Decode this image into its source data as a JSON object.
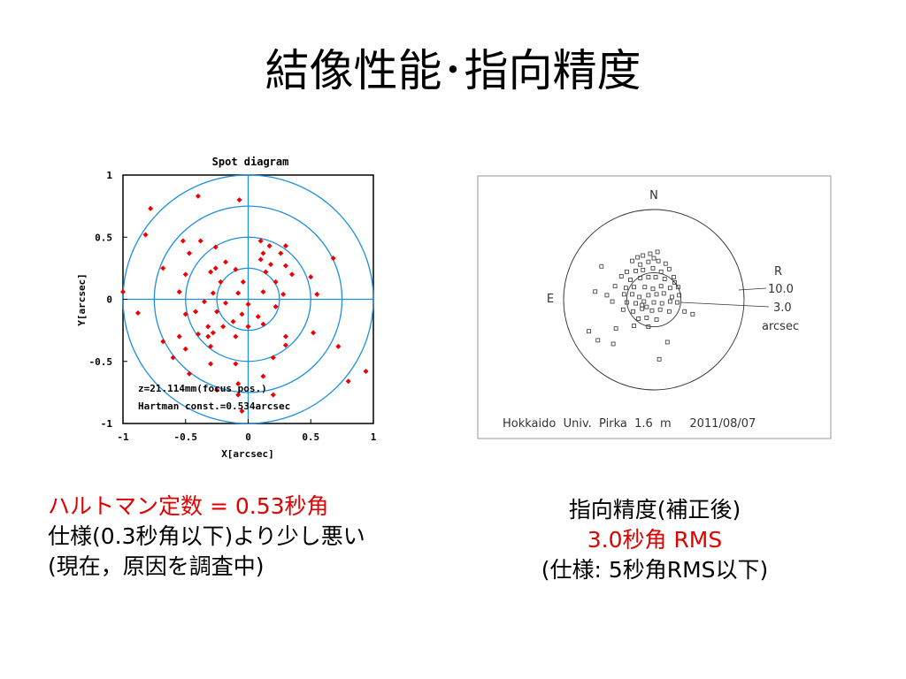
{
  "title": "結像性能･指向精度",
  "colors": {
    "spot": "#ee0000",
    "rings": "#1e8fe0",
    "highlight": "#e00000"
  },
  "chart_data": [
    {
      "type": "scatter",
      "title": "Spot diagram",
      "xlabel": "X[arcsec]",
      "ylabel": "Y[arcsec]",
      "xlim": [
        -1,
        1
      ],
      "ylim": [
        -1,
        1
      ],
      "xticks": [
        "-1",
        "-0.5",
        "0",
        "0.5",
        "1"
      ],
      "yticks": [
        "1",
        "0.5",
        "0",
        "-0.5",
        "-1"
      ],
      "ring_radii": [
        0.25,
        0.5,
        0.75,
        1.0
      ],
      "annotations": [
        "z=21.114mm(focus pos.)",
        "Hartman const.=0.534arcsec"
      ],
      "points": [
        [
          -0.4,
          0.83
        ],
        [
          -0.07,
          0.8
        ],
        [
          -0.78,
          0.73
        ],
        [
          -0.82,
          0.52
        ],
        [
          -0.52,
          0.47
        ],
        [
          -0.38,
          0.47
        ],
        [
          -0.26,
          0.42
        ],
        [
          -0.47,
          0.37
        ],
        [
          0.1,
          0.47
        ],
        [
          0.17,
          0.43
        ],
        [
          0.3,
          0.43
        ],
        [
          0.12,
          0.37
        ],
        [
          0.26,
          0.37
        ],
        [
          0.68,
          0.33
        ],
        [
          -0.18,
          0.3
        ],
        [
          -0.26,
          0.25
        ],
        [
          0.1,
          0.32
        ],
        [
          0.18,
          0.28
        ],
        [
          0.3,
          0.27
        ],
        [
          -0.68,
          0.25
        ],
        [
          -0.5,
          0.2
        ],
        [
          -0.3,
          0.22
        ],
        [
          -0.1,
          0.24
        ],
        [
          0.14,
          0.22
        ],
        [
          0.35,
          0.2
        ],
        [
          0.5,
          0.18
        ],
        [
          -0.22,
          0.14
        ],
        [
          -0.04,
          0.14
        ],
        [
          0.22,
          0.14
        ],
        [
          -1.0,
          0.06
        ],
        [
          -0.55,
          0.06
        ],
        [
          -0.28,
          0.05
        ],
        [
          -0.08,
          0.05
        ],
        [
          0.12,
          0.06
        ],
        [
          0.28,
          0.04
        ],
        [
          0.55,
          0.04
        ],
        [
          -0.35,
          -0.02
        ],
        [
          -0.18,
          -0.03
        ],
        [
          0.0,
          -0.04
        ],
        [
          0.22,
          -0.06
        ],
        [
          -0.88,
          -0.11
        ],
        [
          -0.5,
          -0.12
        ],
        [
          -0.42,
          -0.1
        ],
        [
          -0.25,
          -0.1
        ],
        [
          -0.05,
          -0.12
        ],
        [
          0.08,
          -0.14
        ],
        [
          -0.12,
          -0.18
        ],
        [
          0.12,
          -0.2
        ],
        [
          -0.32,
          -0.22
        ],
        [
          -0.2,
          -0.22
        ],
        [
          0.0,
          -0.22
        ],
        [
          -0.4,
          -0.28
        ],
        [
          -0.28,
          -0.27
        ],
        [
          -0.55,
          -0.3
        ],
        [
          -0.32,
          -0.3
        ],
        [
          -0.1,
          -0.3
        ],
        [
          0.3,
          -0.3
        ],
        [
          0.52,
          -0.27
        ],
        [
          -0.68,
          -0.34
        ],
        [
          -0.5,
          -0.4
        ],
        [
          -0.3,
          -0.38
        ],
        [
          0.3,
          -0.37
        ],
        [
          -0.6,
          -0.47
        ],
        [
          0.72,
          -0.38
        ],
        [
          -0.3,
          -0.52
        ],
        [
          -0.1,
          -0.52
        ],
        [
          0.2,
          -0.47
        ],
        [
          -0.47,
          -0.6
        ],
        [
          0.12,
          -0.62
        ],
        [
          -0.08,
          -0.68
        ],
        [
          0.8,
          -0.66
        ],
        [
          0.94,
          -0.58
        ],
        [
          -0.25,
          -0.73
        ],
        [
          -0.08,
          -0.77
        ],
        [
          0.2,
          -0.77
        ],
        [
          -0.05,
          -0.9
        ]
      ]
    },
    {
      "type": "scatter",
      "labels": {
        "north": "N",
        "east": "E",
        "legend_r": "R",
        "legend_outer": "10.0",
        "legend_inner": "3.0",
        "legend_unit": "arcsec",
        "footer": "Hokkaido  Univ.  Pirka  1.6  m     2011/08/07"
      },
      "ring_radii": [
        10.0,
        3.0
      ],
      "points": [
        [
          -1.8,
          4.7
        ],
        [
          -1.2,
          4.9
        ],
        [
          -0.4,
          5.1
        ],
        [
          0.4,
          5.3
        ],
        [
          0.0,
          4.6
        ],
        [
          -2.4,
          4.3
        ],
        [
          -1.5,
          3.9
        ],
        [
          -0.6,
          4.2
        ],
        [
          0.5,
          4.3
        ],
        [
          1.3,
          4.0
        ],
        [
          -5.8,
          3.7
        ],
        [
          -3.0,
          3.1
        ],
        [
          -2.0,
          3.2
        ],
        [
          -1.2,
          3.3
        ],
        [
          -0.1,
          3.5
        ],
        [
          0.8,
          3.1
        ],
        [
          1.7,
          3.4
        ],
        [
          -3.6,
          2.6
        ],
        [
          -2.6,
          2.2
        ],
        [
          -1.5,
          2.4
        ],
        [
          -0.6,
          2.5
        ],
        [
          0.2,
          2.5
        ],
        [
          1.2,
          2.3
        ],
        [
          2.2,
          2.5
        ],
        [
          -4.3,
          1.5
        ],
        [
          -3.1,
          1.3
        ],
        [
          -2.2,
          1.4
        ],
        [
          -1.0,
          1.4
        ],
        [
          -0.1,
          1.2
        ],
        [
          0.8,
          1.5
        ],
        [
          1.8,
          1.3
        ],
        [
          2.7,
          1.4
        ],
        [
          -6.5,
          0.9
        ],
        [
          -5.2,
          0.5
        ],
        [
          -3.3,
          0.6
        ],
        [
          -2.4,
          0.6
        ],
        [
          -1.6,
          0.3
        ],
        [
          -0.6,
          0.5
        ],
        [
          0.3,
          0.6
        ],
        [
          1.1,
          0.7
        ],
        [
          2.0,
          0.3
        ],
        [
          2.8,
          0.5
        ],
        [
          -4.6,
          -0.2
        ],
        [
          -3.0,
          -0.3
        ],
        [
          -2.0,
          -0.4
        ],
        [
          -1.1,
          -0.2
        ],
        [
          0.0,
          -0.3
        ],
        [
          0.9,
          -0.4
        ],
        [
          1.8,
          -0.2
        ],
        [
          2.6,
          -0.3
        ],
        [
          -3.4,
          -1.1
        ],
        [
          -2.3,
          -1.3
        ],
        [
          -1.3,
          -1.0
        ],
        [
          -0.2,
          -1.2
        ],
        [
          0.7,
          -1.1
        ],
        [
          1.7,
          -1.3
        ],
        [
          3.4,
          -1.3
        ],
        [
          4.3,
          -1.6
        ],
        [
          -1.7,
          -2.1
        ],
        [
          -0.8,
          -2.0
        ],
        [
          -2.2,
          -2.9
        ],
        [
          -7.2,
          -3.5
        ],
        [
          -4.2,
          -3.2
        ],
        [
          -6.2,
          -4.5
        ],
        [
          -4.5,
          -4.9
        ],
        [
          1.5,
          -4.7
        ],
        [
          0.6,
          -6.6
        ],
        [
          -0.6,
          -3.0
        ],
        [
          0.3,
          -2.2
        ],
        [
          -1.3,
          -0.6
        ],
        [
          2.3,
          1.9
        ],
        [
          -0.8,
          -0.8
        ]
      ]
    }
  ],
  "left_notes": {
    "line1": "ハルトマン定数 = 0.53秒角",
    "line2": "仕様(0.3秒角以下)より少し悪い",
    "line3": "(現在，原因を調査中)"
  },
  "right_notes": {
    "line1": "指向精度(補正後)",
    "line2": "3.0秒角 RMS",
    "line3": "(仕様: 5秒角RMS以下)"
  }
}
